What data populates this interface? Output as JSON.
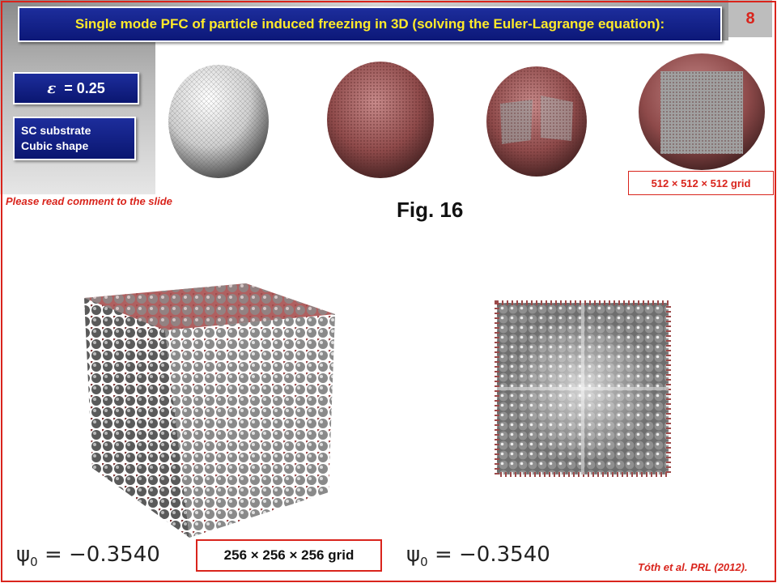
{
  "title": "Single mode PFC of particle induced freezing in 3D (solving the Euler-Lagrange equation):",
  "slide_number": "8",
  "epsilon_box": {
    "symbol": "ε",
    "value": "= 0.25"
  },
  "substrate_box": {
    "line1": "SC substrate",
    "line2": "Cubic shape"
  },
  "note": "Please read comment to the slide",
  "figure_label": "Fig. 16",
  "small_grid_label": "512 × 512 × 512 grid",
  "large_grid_label": "256 × 256 × 256 grid",
  "psi_left": {
    "symbol": "ψ",
    "sub": "0",
    "value": " = −0.3540"
  },
  "psi_right": {
    "symbol": "ψ",
    "sub": "0",
    "value": " = −0.3540"
  },
  "citation": "Tóth et al. PRL (2012).",
  "colors": {
    "accent_red": "#d9241c",
    "title_blue": "#0c1878",
    "title_yellow": "#ffeb2a",
    "atom_red": "#9c4a4a",
    "atom_grey": "#9a9a9a"
  }
}
